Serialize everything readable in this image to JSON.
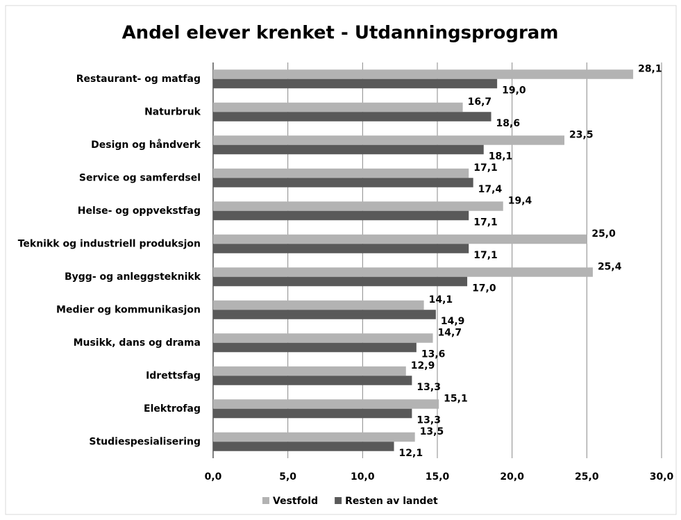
{
  "chart_data": {
    "type": "bar",
    "orientation": "horizontal",
    "title": "Andel elever krenket  - Utdanningsprogram",
    "categories": [
      "Restaurant- og matfag",
      "Naturbruk",
      "Design og håndverk",
      "Service og samferdsel",
      "Helse- og oppvekstfag",
      "Teknikk og industriell produksjon",
      "Bygg- og anleggsteknikk",
      "Medier og kommunikasjon",
      "Musikk, dans og drama",
      "Idrettsfag",
      "Elektrofag",
      "Studiespesialisering"
    ],
    "series": [
      {
        "name": "Vestfold",
        "color": "#b3b3b3",
        "values": [
          28.1,
          16.7,
          23.5,
          17.1,
          19.4,
          25.0,
          25.4,
          14.1,
          14.7,
          12.9,
          15.1,
          13.5
        ],
        "value_labels": [
          "28,1",
          "16,7",
          "23,5",
          "17,1",
          "19,4",
          "25,0",
          "25,4",
          "14,1",
          "14,7",
          "12,9",
          "15,1",
          "13,5"
        ]
      },
      {
        "name": "Resten av landet",
        "color": "#595959",
        "values": [
          19.0,
          18.6,
          18.1,
          17.4,
          17.1,
          17.1,
          17.0,
          14.9,
          13.6,
          13.3,
          13.3,
          12.1
        ],
        "value_labels": [
          "19,0",
          "18,6",
          "18,1",
          "17,4",
          "17,1",
          "17,1",
          "17,0",
          "14,9",
          "13,6",
          "13,3",
          "13,3",
          "12,1"
        ]
      }
    ],
    "xlim": [
      0,
      30
    ],
    "xticks": [
      {
        "value": 0,
        "label": "0,0"
      },
      {
        "value": 5,
        "label": "5,0"
      },
      {
        "value": 10,
        "label": "10,0"
      },
      {
        "value": 15,
        "label": "15,0"
      },
      {
        "value": 20,
        "label": "20,0"
      },
      {
        "value": 25,
        "label": "25,0"
      },
      {
        "value": 30,
        "label": "30,0"
      }
    ],
    "grid": true,
    "legend": "bottom"
  }
}
